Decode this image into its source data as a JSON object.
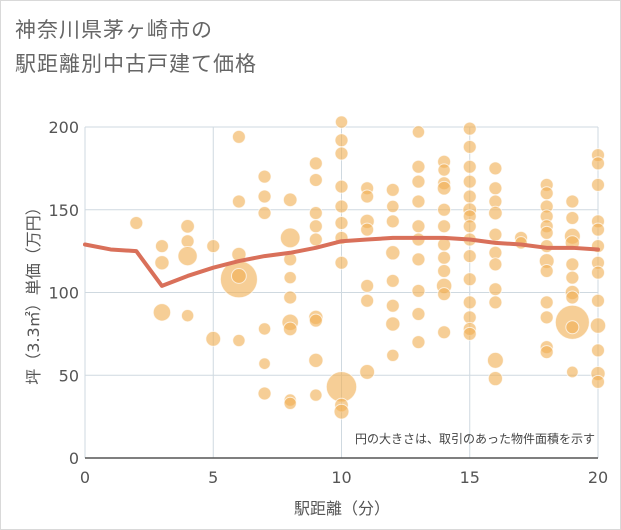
{
  "title": {
    "line1": "神奈川県茅ヶ崎市の",
    "line2": "駅距離別中古戸建て価格"
  },
  "colors": {
    "bubble": "#f0b055",
    "line": "#d9705a",
    "grid": "#cfd9e0",
    "axis": "#555555"
  },
  "chart_data": {
    "type": "scatter",
    "xlabel": "駅距離（分）",
    "ylabel": "坪（3.3㎡）単価（万円）",
    "xlim": [
      0,
      20
    ],
    "ylim": [
      0,
      200
    ],
    "x_ticks": [
      "0",
      "5",
      "10",
      "15",
      "20"
    ],
    "y_ticks": [
      "0",
      "50",
      "100",
      "150",
      "200"
    ],
    "x_tick_values": [
      0,
      5,
      10,
      15,
      20
    ],
    "y_tick_values": [
      0,
      50,
      100,
      150,
      200
    ],
    "grid": true,
    "annotation": "円の大きさは、取引のあった物件面積を示す",
    "bubble_series": [
      {
        "x": 2,
        "y": 142,
        "s": 1
      },
      {
        "x": 3,
        "y": 128,
        "s": 1
      },
      {
        "x": 3,
        "y": 118,
        "s": 1.2
      },
      {
        "x": 3,
        "y": 88,
        "s": 1.8
      },
      {
        "x": 4,
        "y": 140,
        "s": 1.1
      },
      {
        "x": 4,
        "y": 131,
        "s": 1
      },
      {
        "x": 4,
        "y": 122,
        "s": 2.2
      },
      {
        "x": 4,
        "y": 86,
        "s": 0.9
      },
      {
        "x": 5,
        "y": 128,
        "s": 1
      },
      {
        "x": 5,
        "y": 72,
        "s": 1.3
      },
      {
        "x": 6,
        "y": 194,
        "s": 1
      },
      {
        "x": 6,
        "y": 155,
        "s": 1
      },
      {
        "x": 6,
        "y": 123,
        "s": 1.2
      },
      {
        "x": 6,
        "y": 108,
        "s": 5.2
      },
      {
        "x": 6,
        "y": 110,
        "s": 1.3
      },
      {
        "x": 6,
        "y": 71,
        "s": 0.9
      },
      {
        "x": 7,
        "y": 170,
        "s": 1
      },
      {
        "x": 7,
        "y": 158,
        "s": 1
      },
      {
        "x": 7,
        "y": 148,
        "s": 1
      },
      {
        "x": 7,
        "y": 78,
        "s": 0.9
      },
      {
        "x": 7,
        "y": 57,
        "s": 0.8
      },
      {
        "x": 7,
        "y": 39,
        "s": 1
      },
      {
        "x": 8,
        "y": 156,
        "s": 1.1
      },
      {
        "x": 8,
        "y": 133,
        "s": 2.3
      },
      {
        "x": 8,
        "y": 120,
        "s": 1
      },
      {
        "x": 8,
        "y": 109,
        "s": 0.9
      },
      {
        "x": 8,
        "y": 97,
        "s": 1
      },
      {
        "x": 8,
        "y": 82,
        "s": 1.6
      },
      {
        "x": 8,
        "y": 78,
        "s": 1.1
      },
      {
        "x": 8,
        "y": 35,
        "s": 0.9
      },
      {
        "x": 8,
        "y": 33,
        "s": 0.9
      },
      {
        "x": 9,
        "y": 178,
        "s": 1
      },
      {
        "x": 9,
        "y": 168,
        "s": 1
      },
      {
        "x": 9,
        "y": 148,
        "s": 1
      },
      {
        "x": 9,
        "y": 140,
        "s": 1
      },
      {
        "x": 9,
        "y": 132,
        "s": 1
      },
      {
        "x": 9,
        "y": 85,
        "s": 1.2
      },
      {
        "x": 9,
        "y": 83,
        "s": 1
      },
      {
        "x": 9,
        "y": 59,
        "s": 1.2
      },
      {
        "x": 9,
        "y": 38,
        "s": 0.9
      },
      {
        "x": 10,
        "y": 203,
        "s": 0.9
      },
      {
        "x": 10,
        "y": 192,
        "s": 1
      },
      {
        "x": 10,
        "y": 184,
        "s": 1
      },
      {
        "x": 10,
        "y": 164,
        "s": 1
      },
      {
        "x": 10,
        "y": 152,
        "s": 1
      },
      {
        "x": 10,
        "y": 142,
        "s": 1
      },
      {
        "x": 10,
        "y": 133,
        "s": 1
      },
      {
        "x": 10,
        "y": 118,
        "s": 1
      },
      {
        "x": 10,
        "y": 43,
        "s": 3.5
      },
      {
        "x": 10,
        "y": 32,
        "s": 1.1
      },
      {
        "x": 10,
        "y": 28,
        "s": 1.3
      },
      {
        "x": 11,
        "y": 163,
        "s": 1
      },
      {
        "x": 11,
        "y": 158,
        "s": 1
      },
      {
        "x": 11,
        "y": 143,
        "s": 1.2
      },
      {
        "x": 11,
        "y": 138,
        "s": 1
      },
      {
        "x": 11,
        "y": 104,
        "s": 1
      },
      {
        "x": 11,
        "y": 95,
        "s": 1
      },
      {
        "x": 11,
        "y": 52,
        "s": 1.3
      },
      {
        "x": 12,
        "y": 162,
        "s": 1
      },
      {
        "x": 12,
        "y": 152,
        "s": 0.9
      },
      {
        "x": 12,
        "y": 143,
        "s": 1
      },
      {
        "x": 12,
        "y": 124,
        "s": 1.2
      },
      {
        "x": 12,
        "y": 107,
        "s": 1
      },
      {
        "x": 12,
        "y": 92,
        "s": 1
      },
      {
        "x": 12,
        "y": 81,
        "s": 1.2
      },
      {
        "x": 12,
        "y": 62,
        "s": 0.9
      },
      {
        "x": 13,
        "y": 197,
        "s": 0.9
      },
      {
        "x": 13,
        "y": 176,
        "s": 1
      },
      {
        "x": 13,
        "y": 167,
        "s": 1
      },
      {
        "x": 13,
        "y": 155,
        "s": 1
      },
      {
        "x": 13,
        "y": 140,
        "s": 1
      },
      {
        "x": 13,
        "y": 132,
        "s": 1
      },
      {
        "x": 13,
        "y": 120,
        "s": 1
      },
      {
        "x": 13,
        "y": 101,
        "s": 1
      },
      {
        "x": 13,
        "y": 87,
        "s": 1
      },
      {
        "x": 13,
        "y": 70,
        "s": 1
      },
      {
        "x": 14,
        "y": 179,
        "s": 1
      },
      {
        "x": 14,
        "y": 174,
        "s": 0.9
      },
      {
        "x": 14,
        "y": 166,
        "s": 1
      },
      {
        "x": 14,
        "y": 163,
        "s": 1.1
      },
      {
        "x": 14,
        "y": 150,
        "s": 1
      },
      {
        "x": 14,
        "y": 140,
        "s": 1
      },
      {
        "x": 14,
        "y": 129,
        "s": 1
      },
      {
        "x": 14,
        "y": 121,
        "s": 1
      },
      {
        "x": 14,
        "y": 113,
        "s": 1
      },
      {
        "x": 14,
        "y": 104,
        "s": 1.4
      },
      {
        "x": 14,
        "y": 99,
        "s": 1
      },
      {
        "x": 14,
        "y": 76,
        "s": 1
      },
      {
        "x": 15,
        "y": 199,
        "s": 1
      },
      {
        "x": 15,
        "y": 188,
        "s": 1
      },
      {
        "x": 15,
        "y": 176,
        "s": 1
      },
      {
        "x": 15,
        "y": 167,
        "s": 1
      },
      {
        "x": 15,
        "y": 158,
        "s": 1
      },
      {
        "x": 15,
        "y": 150,
        "s": 1.1
      },
      {
        "x": 15,
        "y": 146,
        "s": 1
      },
      {
        "x": 15,
        "y": 140,
        "s": 1
      },
      {
        "x": 15,
        "y": 132,
        "s": 1
      },
      {
        "x": 15,
        "y": 122,
        "s": 1
      },
      {
        "x": 15,
        "y": 108,
        "s": 1
      },
      {
        "x": 15,
        "y": 94,
        "s": 1
      },
      {
        "x": 15,
        "y": 85,
        "s": 1
      },
      {
        "x": 15,
        "y": 78,
        "s": 1
      },
      {
        "x": 15,
        "y": 75,
        "s": 1
      },
      {
        "x": 16,
        "y": 175,
        "s": 1
      },
      {
        "x": 16,
        "y": 163,
        "s": 1
      },
      {
        "x": 16,
        "y": 155,
        "s": 1
      },
      {
        "x": 16,
        "y": 148,
        "s": 1.1
      },
      {
        "x": 16,
        "y": 135,
        "s": 1
      },
      {
        "x": 16,
        "y": 124,
        "s": 1
      },
      {
        "x": 16,
        "y": 117,
        "s": 1
      },
      {
        "x": 16,
        "y": 102,
        "s": 1
      },
      {
        "x": 16,
        "y": 94,
        "s": 1
      },
      {
        "x": 16,
        "y": 59,
        "s": 1.5
      },
      {
        "x": 16,
        "y": 48,
        "s": 1.2
      },
      {
        "x": 17,
        "y": 133,
        "s": 1
      },
      {
        "x": 17,
        "y": 130,
        "s": 0.9
      },
      {
        "x": 18,
        "y": 165,
        "s": 1
      },
      {
        "x": 18,
        "y": 160,
        "s": 1
      },
      {
        "x": 18,
        "y": 152,
        "s": 1
      },
      {
        "x": 18,
        "y": 146,
        "s": 1
      },
      {
        "x": 18,
        "y": 140,
        "s": 1
      },
      {
        "x": 18,
        "y": 136,
        "s": 1
      },
      {
        "x": 18,
        "y": 128,
        "s": 1
      },
      {
        "x": 18,
        "y": 119,
        "s": 1.3
      },
      {
        "x": 18,
        "y": 113,
        "s": 1
      },
      {
        "x": 18,
        "y": 94,
        "s": 1
      },
      {
        "x": 18,
        "y": 85,
        "s": 1
      },
      {
        "x": 18,
        "y": 67,
        "s": 1
      },
      {
        "x": 18,
        "y": 64,
        "s": 1
      },
      {
        "x": 19,
        "y": 155,
        "s": 1
      },
      {
        "x": 19,
        "y": 145,
        "s": 1
      },
      {
        "x": 19,
        "y": 134,
        "s": 1.5
      },
      {
        "x": 19,
        "y": 130,
        "s": 1.2
      },
      {
        "x": 19,
        "y": 117,
        "s": 1
      },
      {
        "x": 19,
        "y": 109,
        "s": 1
      },
      {
        "x": 19,
        "y": 100,
        "s": 1.2
      },
      {
        "x": 19,
        "y": 97,
        "s": 1
      },
      {
        "x": 19,
        "y": 82,
        "s": 4.4
      },
      {
        "x": 19,
        "y": 79,
        "s": 1
      },
      {
        "x": 19,
        "y": 52,
        "s": 0.8
      },
      {
        "x": 20,
        "y": 183,
        "s": 1
      },
      {
        "x": 20,
        "y": 178,
        "s": 1
      },
      {
        "x": 20,
        "y": 165,
        "s": 1
      },
      {
        "x": 20,
        "y": 143,
        "s": 1
      },
      {
        "x": 20,
        "y": 138,
        "s": 1
      },
      {
        "x": 20,
        "y": 128,
        "s": 1
      },
      {
        "x": 20,
        "y": 118,
        "s": 1
      },
      {
        "x": 20,
        "y": 112,
        "s": 1
      },
      {
        "x": 20,
        "y": 95,
        "s": 1
      },
      {
        "x": 20,
        "y": 80,
        "s": 1.4
      },
      {
        "x": 20,
        "y": 65,
        "s": 1
      },
      {
        "x": 20,
        "y": 51,
        "s": 1.2
      },
      {
        "x": 20,
        "y": 46,
        "s": 1
      }
    ],
    "line_series": {
      "x": [
        0,
        1,
        2,
        3,
        4,
        5,
        6,
        7,
        8,
        9,
        10,
        11,
        12,
        13,
        14,
        15,
        16,
        17,
        18,
        19,
        20
      ],
      "y": [
        129,
        126,
        125,
        104,
        110,
        115,
        119,
        122,
        124,
        127,
        131,
        132,
        133,
        133,
        133,
        132,
        130,
        129,
        127,
        127,
        126
      ]
    }
  }
}
